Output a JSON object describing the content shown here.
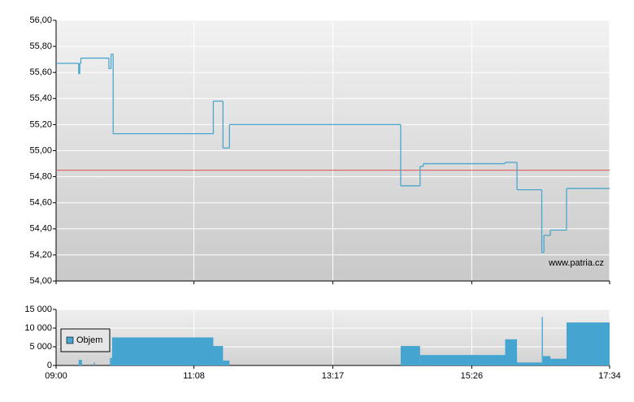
{
  "chart_data": [
    {
      "type": "line",
      "x": [
        "09:00",
        "09:21",
        "09:22",
        "09:23",
        "09:49",
        "09:51",
        "09:53",
        "11:26",
        "11:35",
        "11:41",
        "14:20",
        "14:38",
        "14:41",
        "15:57",
        "16:08",
        "16:31",
        "16:33",
        "16:39",
        "16:54",
        "17:34"
      ],
      "series": [
        {
          "color": "#4aa6cc",
          "values": [
            55.67,
            55.59,
            55.67,
            55.71,
            55.63,
            55.74,
            55.13,
            55.38,
            55.02,
            55.2,
            54.73,
            54.88,
            54.9,
            54.91,
            54.7,
            54.22,
            54.35,
            54.39,
            54.71,
            54.71
          ]
        }
      ],
      "xlim": [
        "09:00",
        "17:34"
      ],
      "xticks": [
        "09:00",
        "11:08",
        "13:17",
        "15:26",
        "17:34"
      ],
      "ylim": [
        54,
        56
      ],
      "yticks": [
        {
          "value": 54,
          "label": "54,00"
        },
        {
          "value": 54.2,
          "label": "54,20"
        },
        {
          "value": 54.4,
          "label": "54,40"
        },
        {
          "value": 54.6,
          "label": "54,60"
        },
        {
          "value": 54.8,
          "label": "54,80"
        },
        {
          "value": 55,
          "label": "55,00"
        },
        {
          "value": 55.2,
          "label": "55,20"
        },
        {
          "value": 55.4,
          "label": "55,40"
        },
        {
          "value": 55.6,
          "label": "55,60"
        },
        {
          "value": 55.8,
          "label": "55,80"
        },
        {
          "value": 56,
          "label": "56,00"
        }
      ],
      "grid": true,
      "reference_line": 54.85,
      "reference_color": "#e05050",
      "annotation": "www.patria.cz"
    },
    {
      "type": "bar",
      "x": [
        "09:21",
        "09:24",
        "09:35",
        "09:36",
        "09:50",
        "09:52",
        "11:26",
        "11:35",
        "11:41",
        "14:20",
        "14:38",
        "15:57",
        "16:08",
        "16:31",
        "16:32",
        "16:39",
        "16:54"
      ],
      "series": [
        {
          "name": "Objem",
          "color": "#45a5d0",
          "values": [
            1500,
            0,
            800,
            0,
            2000,
            7500,
            5200,
            1300,
            0,
            5200,
            2800,
            7000,
            800,
            13000,
            2500,
            1800,
            11500
          ]
        }
      ],
      "xlim": [
        "09:00",
        "17:34"
      ],
      "xticks": [
        "09:00",
        "11:08",
        "13:17",
        "15:26",
        "17:34"
      ],
      "ylim": [
        0,
        15000
      ],
      "yticks": [
        {
          "value": 0,
          "label": "0"
        },
        {
          "value": 5000,
          "label": "5 000"
        },
        {
          "value": 10000,
          "label": "10 000"
        },
        {
          "value": 15000,
          "label": "15 000"
        }
      ],
      "grid": true,
      "legend": "upper left"
    }
  ]
}
